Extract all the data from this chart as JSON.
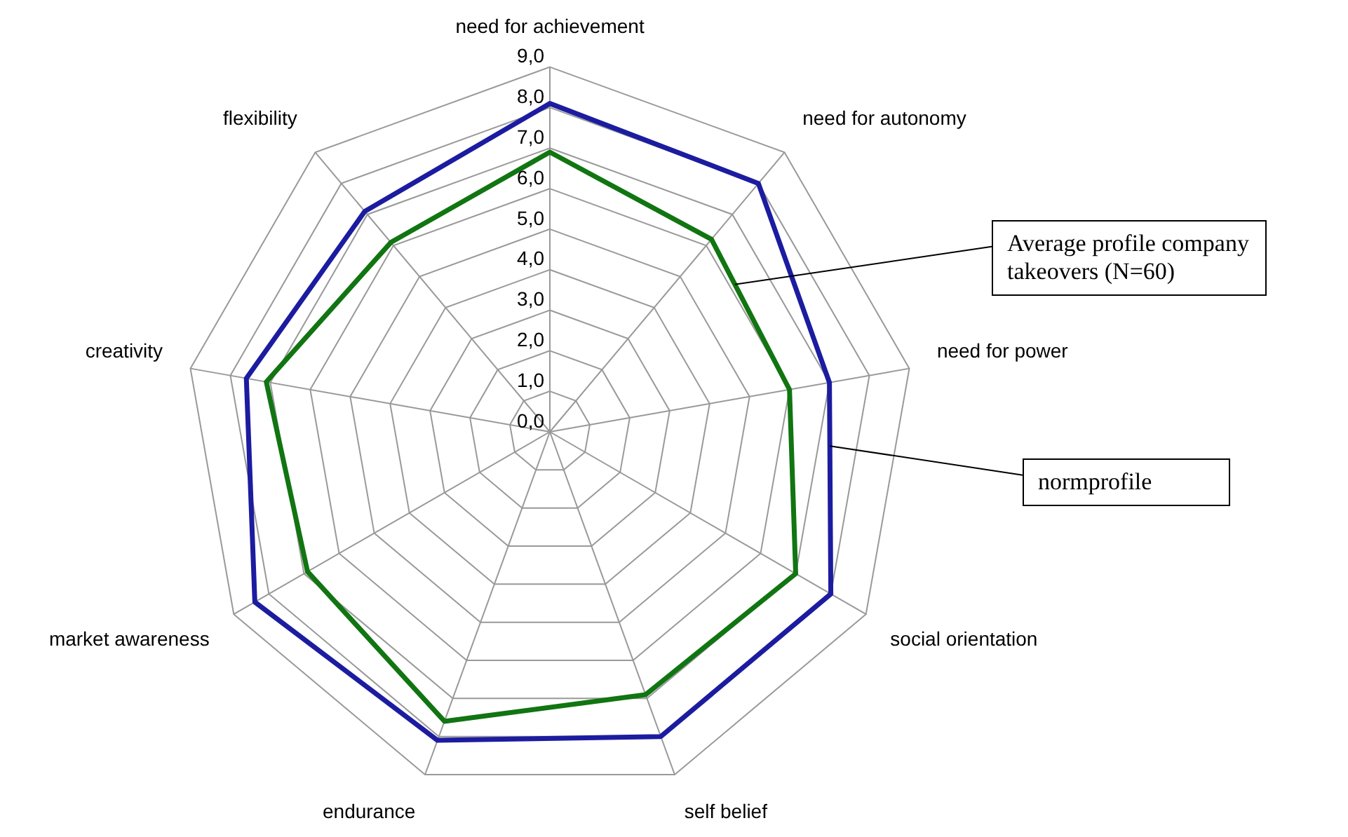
{
  "chart_data": {
    "type": "radar",
    "categories": [
      "need for achievement",
      "need for autonomy",
      "need for power",
      "social orientation",
      "self belief",
      "endurance",
      "market awareness",
      "creativity",
      "flexibility"
    ],
    "series": [
      {
        "name": "normprofile",
        "color": "#1c1ca0",
        "values": [
          8.1,
          8.0,
          7.0,
          8.0,
          8.0,
          8.1,
          8.4,
          7.6,
          7.1
        ]
      },
      {
        "name": "Average profile company takeovers (N=60)",
        "color": "#117511",
        "values": [
          6.9,
          6.2,
          6.0,
          7.0,
          6.9,
          7.6,
          6.9,
          7.1,
          6.1
        ]
      }
    ],
    "ylim": [
      0,
      9
    ],
    "yticks": [
      {
        "value": 0,
        "label": "0,0"
      },
      {
        "value": 1,
        "label": "1,0"
      },
      {
        "value": 2,
        "label": "2,0"
      },
      {
        "value": 3,
        "label": "3,0"
      },
      {
        "value": 4,
        "label": "4,0"
      },
      {
        "value": 5,
        "label": "5,0"
      },
      {
        "value": 6,
        "label": "6,0"
      },
      {
        "value": 7,
        "label": "7,0"
      },
      {
        "value": 8,
        "label": "8,0"
      },
      {
        "value": 9,
        "label": "9,0"
      }
    ],
    "grid": true,
    "legend": false,
    "marker": "none",
    "line_style": "solid"
  }
}
